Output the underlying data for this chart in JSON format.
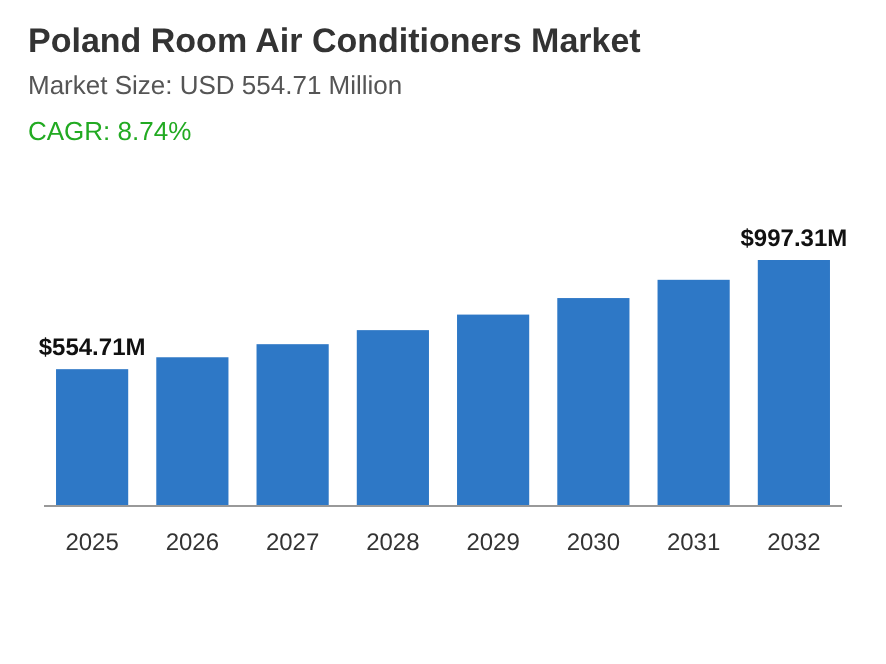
{
  "chart_data": {
    "type": "bar",
    "title": "Poland Room Air Conditioners Market",
    "subtitle": "Market Size: USD 554.71 Million",
    "annotations": [
      "CAGR: 8.74%"
    ],
    "categories": [
      "2025",
      "2026",
      "2027",
      "2028",
      "2029",
      "2030",
      "2031",
      "2032"
    ],
    "values": [
      554.71,
      603,
      656,
      713,
      776,
      843,
      917,
      997.31
    ],
    "value_labels": [
      "$554.71M",
      null,
      null,
      null,
      null,
      null,
      null,
      "$997.31M"
    ],
    "color": "#2e78c6"
  }
}
